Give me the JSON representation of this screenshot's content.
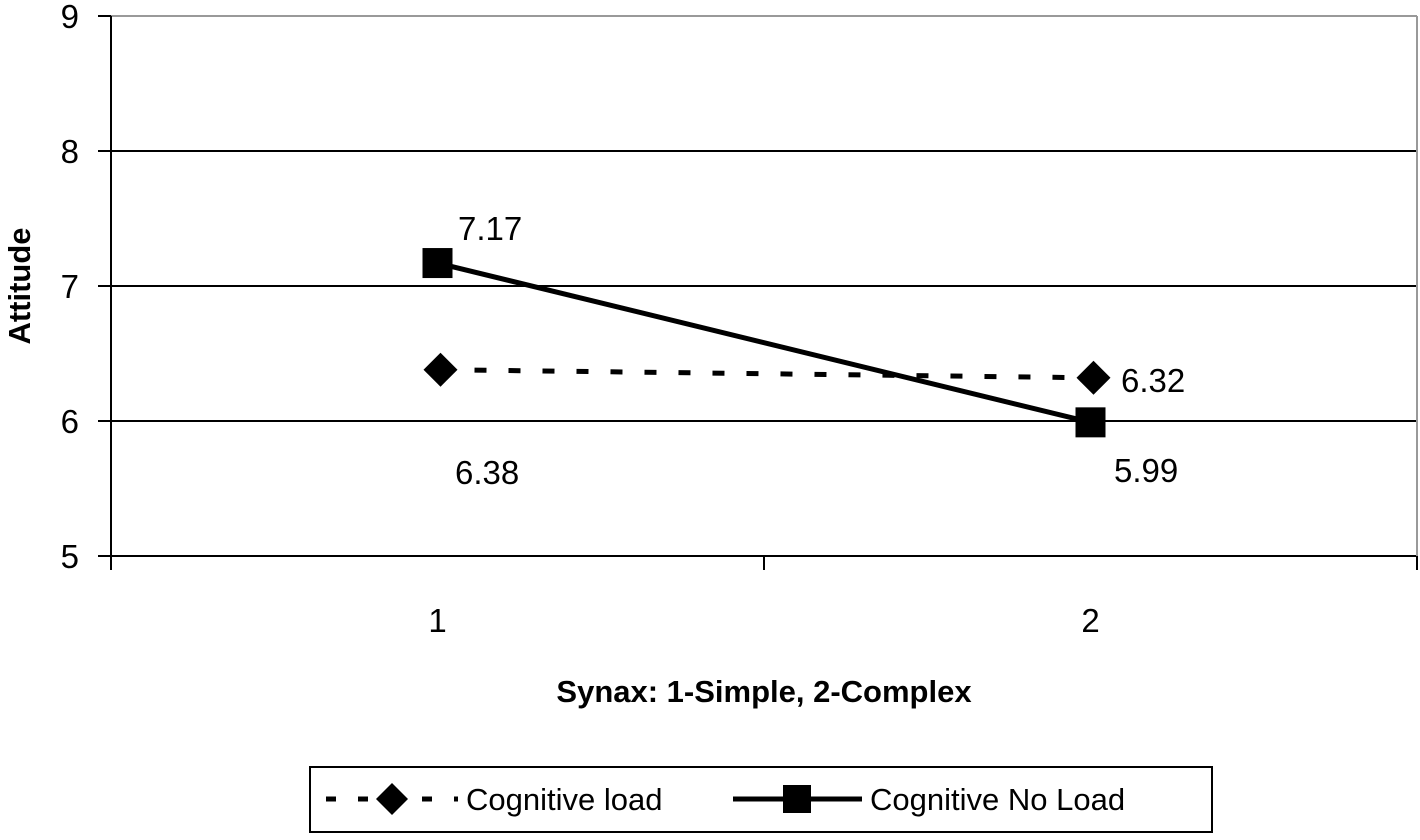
{
  "chart_data": {
    "type": "line",
    "title": "",
    "xlabel": "Synax: 1-Simple, 2-Complex",
    "ylabel": "Attitude",
    "categories": [
      "1",
      "2"
    ],
    "ylim": [
      5,
      9
    ],
    "yticks": [
      "5",
      "6",
      "7",
      "8",
      "9"
    ],
    "grid": true,
    "legend_position": "bottom",
    "series": [
      {
        "name": "Cognitive load",
        "values": [
          6.38,
          6.32
        ],
        "labels": [
          "6.38",
          "6.32"
        ],
        "style": "dashed",
        "marker": "diamond",
        "color": "#000000"
      },
      {
        "name": "Cognitive No Load",
        "values": [
          7.17,
          5.99
        ],
        "labels": [
          "7.17",
          "5.99"
        ],
        "style": "solid",
        "marker": "square",
        "color": "#000000"
      }
    ]
  }
}
